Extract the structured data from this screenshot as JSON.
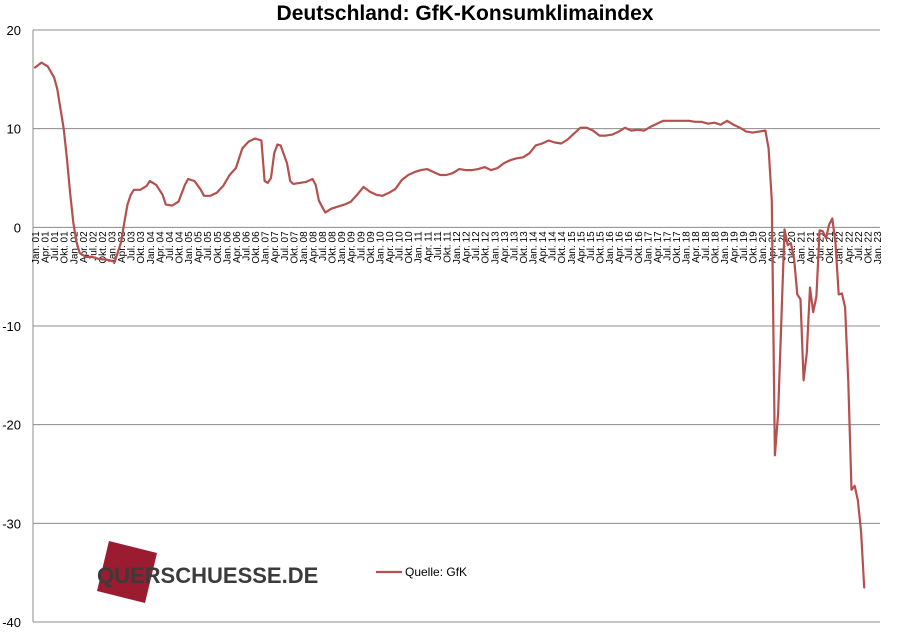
{
  "chart_data": {
    "type": "line",
    "title": "Deutschland:  GfK-Konsumklimaindex",
    "xlabel": "",
    "ylabel": "",
    "ylim": [
      -40,
      20
    ],
    "yticks": [
      20,
      10,
      0,
      -10,
      -20,
      -30,
      -40
    ],
    "grid": true,
    "legend_position": "bottom-center",
    "line_color": "#B5504E",
    "x_tick_labels": [
      "Jan. 01",
      "Apr. 01",
      "Jul. 01",
      "Okt. 01",
      "Jan. 02",
      "Apr. 02",
      "Jul. 02",
      "Okt. 02",
      "Jan. 03",
      "Apr. 03",
      "Jul. 03",
      "Okt. 03",
      "Jan. 04",
      "Apr. 04",
      "Jul. 04",
      "Okt. 04",
      "Jan. 05",
      "Apr. 05",
      "Jul. 05",
      "Okt. 05",
      "Jan. 06",
      "Apr. 06",
      "Jul. 06",
      "Okt. 06",
      "Jan. 07",
      "Apr. 07",
      "Jul. 07",
      "Okt. 07",
      "Jan. 08",
      "Apr. 08",
      "Jul. 08",
      "Okt. 08",
      "Jan. 09",
      "Apr. 09",
      "Jul. 09",
      "Okt. 09",
      "Jan. 10",
      "Apr. 10",
      "Jul. 10",
      "Okt. 10",
      "Jan. 11",
      "Apr. 11",
      "Jul. 11",
      "Okt. 11",
      "Jan. 12",
      "Apr. 12",
      "Jul. 12",
      "Okt. 12",
      "Jan. 13",
      "Apr. 13",
      "Jul. 13",
      "Okt. 13",
      "Jan. 14",
      "Apr. 14",
      "Jul. 14",
      "Okt. 14",
      "Jan. 15",
      "Apr. 15",
      "Jul. 15",
      "Okt. 15",
      "Jan. 16",
      "Apr. 16",
      "Jul. 16",
      "Okt. 16",
      "Jan. 17",
      "Apr. 17",
      "Jul. 17",
      "Okt. 17",
      "Jan. 18",
      "Apr. 18",
      "Jul. 18",
      "Okt. 18",
      "Jan. 19",
      "Apr. 19",
      "Jul. 19",
      "Okt. 19",
      "Jan. 20",
      "Apr. 20",
      "Jul. 20",
      "Okt. 20",
      "Jan. 21",
      "Apr. 21",
      "Jul. 21",
      "Okt. 21",
      "Jan. 22",
      "Apr. 22",
      "Jul. 22",
      "Okt. 22",
      "Jan. 23"
    ],
    "series": [
      {
        "name": "Quelle: GfK",
        "points": [
          [
            "2001-01",
            16.2
          ],
          [
            "2001-03",
            16.7
          ],
          [
            "2001-05",
            16.3
          ],
          [
            "2001-07",
            15.2
          ],
          [
            "2001-08",
            14.0
          ],
          [
            "2001-09",
            12.0
          ],
          [
            "2001-10",
            10.0
          ],
          [
            "2001-11",
            7.0
          ],
          [
            "2001-12",
            3.5
          ],
          [
            "2002-01",
            0.5
          ],
          [
            "2002-02",
            -1.5
          ],
          [
            "2002-03",
            -2.6
          ],
          [
            "2002-05",
            -3.0
          ],
          [
            "2002-07",
            -3.0
          ],
          [
            "2002-09",
            -3.2
          ],
          [
            "2002-12",
            -3.3
          ],
          [
            "2003-02",
            -3.5
          ],
          [
            "2003-04",
            -1.5
          ],
          [
            "2003-05",
            0.5
          ],
          [
            "2003-06",
            2.3
          ],
          [
            "2003-07",
            3.3
          ],
          [
            "2003-08",
            3.8
          ],
          [
            "2003-10",
            3.8
          ],
          [
            "2003-12",
            4.2
          ],
          [
            "2004-01",
            4.7
          ],
          [
            "2004-03",
            4.3
          ],
          [
            "2004-05",
            3.3
          ],
          [
            "2004-06",
            2.3
          ],
          [
            "2004-08",
            2.2
          ],
          [
            "2004-10",
            2.6
          ],
          [
            "2004-12",
            4.3
          ],
          [
            "2005-01",
            4.9
          ],
          [
            "2005-03",
            4.7
          ],
          [
            "2005-05",
            3.8
          ],
          [
            "2005-06",
            3.2
          ],
          [
            "2005-08",
            3.2
          ],
          [
            "2005-10",
            3.5
          ],
          [
            "2005-12",
            4.2
          ],
          [
            "2006-02",
            5.3
          ],
          [
            "2006-04",
            6.0
          ],
          [
            "2006-06",
            8.0
          ],
          [
            "2006-08",
            8.7
          ],
          [
            "2006-10",
            9.0
          ],
          [
            "2006-12",
            8.8
          ],
          [
            "2007-01",
            4.7
          ],
          [
            "2007-02",
            4.5
          ],
          [
            "2007-03",
            5.0
          ],
          [
            "2007-04",
            7.5
          ],
          [
            "2007-05",
            8.4
          ],
          [
            "2007-06",
            8.3
          ],
          [
            "2007-08",
            6.5
          ],
          [
            "2007-09",
            4.7
          ],
          [
            "2007-10",
            4.4
          ],
          [
            "2007-12",
            4.5
          ],
          [
            "2008-02",
            4.6
          ],
          [
            "2008-04",
            4.9
          ],
          [
            "2008-05",
            4.3
          ],
          [
            "2008-06",
            2.7
          ],
          [
            "2008-08",
            1.5
          ],
          [
            "2008-10",
            1.9
          ],
          [
            "2008-12",
            2.1
          ],
          [
            "2009-02",
            2.3
          ],
          [
            "2009-04",
            2.6
          ],
          [
            "2009-06",
            3.3
          ],
          [
            "2009-08",
            4.1
          ],
          [
            "2009-10",
            3.6
          ],
          [
            "2009-12",
            3.3
          ],
          [
            "2010-02",
            3.2
          ],
          [
            "2010-04",
            3.5
          ],
          [
            "2010-06",
            3.9
          ],
          [
            "2010-08",
            4.8
          ],
          [
            "2010-10",
            5.3
          ],
          [
            "2010-12",
            5.6
          ],
          [
            "2011-02",
            5.8
          ],
          [
            "2011-04",
            5.9
          ],
          [
            "2011-06",
            5.6
          ],
          [
            "2011-08",
            5.3
          ],
          [
            "2011-10",
            5.3
          ],
          [
            "2011-12",
            5.5
          ],
          [
            "2012-02",
            5.9
          ],
          [
            "2012-04",
            5.8
          ],
          [
            "2012-06",
            5.8
          ],
          [
            "2012-08",
            5.9
          ],
          [
            "2012-10",
            6.1
          ],
          [
            "2012-12",
            5.8
          ],
          [
            "2013-02",
            6.0
          ],
          [
            "2013-04",
            6.5
          ],
          [
            "2013-06",
            6.8
          ],
          [
            "2013-08",
            7.0
          ],
          [
            "2013-10",
            7.1
          ],
          [
            "2013-12",
            7.5
          ],
          [
            "2014-02",
            8.3
          ],
          [
            "2014-04",
            8.5
          ],
          [
            "2014-06",
            8.8
          ],
          [
            "2014-08",
            8.6
          ],
          [
            "2014-10",
            8.5
          ],
          [
            "2014-12",
            8.9
          ],
          [
            "2015-02",
            9.5
          ],
          [
            "2015-04",
            10.1
          ],
          [
            "2015-06",
            10.1
          ],
          [
            "2015-08",
            9.8
          ],
          [
            "2015-10",
            9.3
          ],
          [
            "2015-12",
            9.3
          ],
          [
            "2016-02",
            9.4
          ],
          [
            "2016-04",
            9.7
          ],
          [
            "2016-06",
            10.1
          ],
          [
            "2016-08",
            9.8
          ],
          [
            "2016-10",
            9.9
          ],
          [
            "2016-12",
            9.8
          ],
          [
            "2017-02",
            10.2
          ],
          [
            "2017-04",
            10.5
          ],
          [
            "2017-06",
            10.8
          ],
          [
            "2017-08",
            10.8
          ],
          [
            "2017-10",
            10.8
          ],
          [
            "2017-12",
            10.8
          ],
          [
            "2018-02",
            10.8
          ],
          [
            "2018-04",
            10.7
          ],
          [
            "2018-06",
            10.7
          ],
          [
            "2018-08",
            10.5
          ],
          [
            "2018-10",
            10.6
          ],
          [
            "2018-12",
            10.4
          ],
          [
            "2019-02",
            10.8
          ],
          [
            "2019-04",
            10.4
          ],
          [
            "2019-06",
            10.1
          ],
          [
            "2019-08",
            9.7
          ],
          [
            "2019-10",
            9.6
          ],
          [
            "2019-12",
            9.7
          ],
          [
            "2020-02",
            9.8
          ],
          [
            "2020-03",
            8.0
          ],
          [
            "2020-04",
            2.7
          ],
          [
            "2020-05",
            -23.1
          ],
          [
            "2020-06",
            -18.9
          ],
          [
            "2020-07",
            -9.6
          ],
          [
            "2020-08",
            -0.2
          ],
          [
            "2020-09",
            -1.8
          ],
          [
            "2020-10",
            -1.6
          ],
          [
            "2020-11",
            -3.2
          ],
          [
            "2020-12",
            -6.8
          ],
          [
            "2021-01",
            -7.3
          ],
          [
            "2021-02",
            -15.5
          ],
          [
            "2021-03",
            -12.7
          ],
          [
            "2021-04",
            -6.1
          ],
          [
            "2021-05",
            -8.6
          ],
          [
            "2021-06",
            -7.0
          ],
          [
            "2021-07",
            -0.3
          ],
          [
            "2021-08",
            -0.4
          ],
          [
            "2021-09",
            -1.1
          ],
          [
            "2021-10",
            0.3
          ],
          [
            "2021-11",
            0.9
          ],
          [
            "2021-12",
            -1.6
          ],
          [
            "2022-01",
            -6.8
          ],
          [
            "2022-02",
            -6.7
          ],
          [
            "2022-03",
            -8.1
          ],
          [
            "2022-04",
            -15.7
          ],
          [
            "2022-05",
            -26.6
          ],
          [
            "2022-06",
            -26.2
          ],
          [
            "2022-07",
            -27.7
          ],
          [
            "2022-08",
            -30.9
          ],
          [
            "2022-09",
            -36.5
          ]
        ]
      }
    ]
  },
  "legend": {
    "label": "Quelle: GfK"
  },
  "watermark": {
    "text": "QUERSCHUESSE.DE",
    "accent_color": "#9B1B30"
  }
}
